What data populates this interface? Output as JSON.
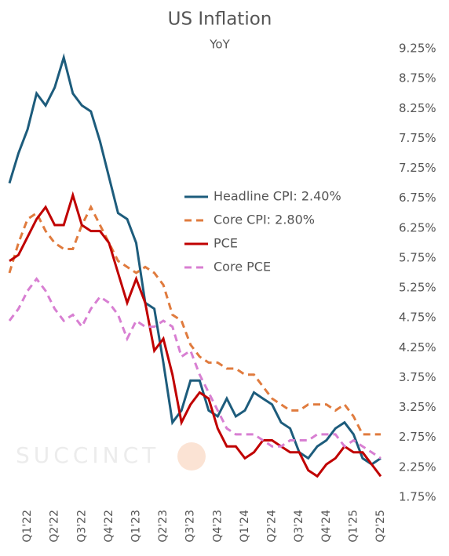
{
  "chart_data": {
    "type": "line",
    "title": "US Inflation",
    "subtitle": "YoY",
    "watermark": "SUCCINCT",
    "categories": [
      null,
      null,
      "Q1'22",
      null,
      null,
      "Q2'22",
      null,
      null,
      "Q3'22",
      null,
      null,
      "Q4'22",
      null,
      null,
      "Q1'23",
      null,
      null,
      "Q2'23",
      null,
      null,
      "Q3'23",
      null,
      null,
      "Q4'23",
      null,
      null,
      "Q1'24",
      null,
      null,
      "Q2'24",
      null,
      null,
      "Q3'24",
      null,
      null,
      "Q4'24",
      null,
      null,
      "Q1'25",
      null,
      null,
      "Q2'25"
    ],
    "series": [
      {
        "name": "Headline CPI: 2.40%",
        "color": "#1d5c7c",
        "dashed": false,
        "values": [
          7.0,
          7.5,
          7.9,
          8.5,
          8.3,
          8.6,
          9.1,
          8.5,
          8.3,
          8.2,
          7.7,
          7.1,
          6.5,
          6.4,
          6.0,
          5.0,
          4.9,
          4.0,
          3.0,
          3.2,
          3.7,
          3.7,
          3.2,
          3.1,
          3.4,
          3.1,
          3.2,
          3.5,
          3.4,
          3.3,
          3.0,
          2.9,
          2.5,
          2.4,
          2.6,
          2.7,
          2.9,
          3.0,
          2.8,
          2.4,
          2.3,
          2.4
        ]
      },
      {
        "name": "Core CPI: 2.80%",
        "color": "#e07b3e",
        "dashed": true,
        "values": [
          5.5,
          6.0,
          6.4,
          6.5,
          6.2,
          6.0,
          5.9,
          5.9,
          6.3,
          6.6,
          6.3,
          6.0,
          5.7,
          5.6,
          5.5,
          5.6,
          5.5,
          5.3,
          4.8,
          4.7,
          4.3,
          4.1,
          4.0,
          4.0,
          3.9,
          3.9,
          3.8,
          3.8,
          3.6,
          3.4,
          3.3,
          3.2,
          3.2,
          3.3,
          3.3,
          3.3,
          3.2,
          3.3,
          3.1,
          2.8,
          2.8,
          2.8
        ]
      },
      {
        "name": "PCE",
        "color": "#c00000",
        "dashed": false,
        "values": [
          5.7,
          5.8,
          6.1,
          6.4,
          6.6,
          6.3,
          6.3,
          6.8,
          6.3,
          6.2,
          6.2,
          6.0,
          5.5,
          5.0,
          5.4,
          5.0,
          4.2,
          4.4,
          3.8,
          3.0,
          3.3,
          3.5,
          3.4,
          2.9,
          2.6,
          2.6,
          2.4,
          2.5,
          2.7,
          2.7,
          2.6,
          2.5,
          2.5,
          2.2,
          2.1,
          2.3,
          2.4,
          2.6,
          2.5,
          2.5,
          2.3,
          2.1
        ]
      },
      {
        "name": "Core PCE",
        "color": "#d87fd2",
        "dashed": true,
        "values": [
          4.7,
          4.9,
          5.2,
          5.4,
          5.2,
          4.9,
          4.7,
          4.8,
          4.6,
          4.9,
          5.1,
          5.0,
          4.8,
          4.4,
          4.7,
          4.6,
          4.6,
          4.7,
          4.6,
          4.1,
          4.2,
          3.8,
          3.5,
          3.2,
          2.9,
          2.8,
          2.8,
          2.8,
          2.7,
          2.6,
          2.6,
          2.7,
          2.7,
          2.7,
          2.8,
          2.8,
          2.8,
          2.6,
          2.7,
          2.6,
          2.5,
          2.4
        ]
      }
    ],
    "ylim": [
      1.75,
      9.25
    ],
    "yticks": [
      {
        "value": 1.75,
        "label": "1.75%"
      },
      {
        "value": 2.25,
        "label": "2.25%"
      },
      {
        "value": 2.75,
        "label": "2.75%"
      },
      {
        "value": 3.25,
        "label": "3.25%"
      },
      {
        "value": 3.75,
        "label": "3.75%"
      },
      {
        "value": 4.25,
        "label": "4.25%"
      },
      {
        "value": 4.75,
        "label": "4.75%"
      },
      {
        "value": 5.25,
        "label": "5.25%"
      },
      {
        "value": 5.75,
        "label": "5.75%"
      },
      {
        "value": 6.25,
        "label": "6.25%"
      },
      {
        "value": 6.75,
        "label": "6.75%"
      },
      {
        "value": 7.25,
        "label": "7.25%"
      },
      {
        "value": 7.75,
        "label": "7.75%"
      },
      {
        "value": 8.25,
        "label": "8.25%"
      },
      {
        "value": 8.75,
        "label": "8.75%"
      },
      {
        "value": 9.25,
        "label": "9.25%"
      }
    ],
    "grid": false,
    "legend": "center"
  }
}
